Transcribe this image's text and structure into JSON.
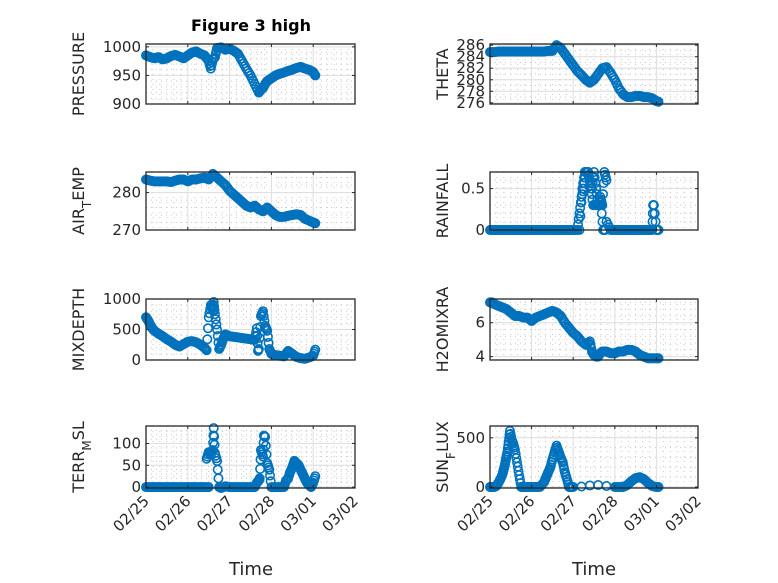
{
  "figure": {
    "title": "Figure 3 high",
    "xlabel": "Time"
  },
  "chart_data": [
    {
      "type": "scatter",
      "ylabel": "PRESSURE",
      "ylabel_sub": null,
      "xlim": [
        0,
        5
      ],
      "ylim": [
        900,
        1005
      ],
      "yticks": [
        900,
        950,
        1000
      ],
      "xticks": [
        "02/25",
        "02/26",
        "02/27",
        "02/28",
        "03/01",
        "03/02"
      ],
      "minor_grid": true,
      "grid": true,
      "show_xticklabels": false,
      "show_title": true,
      "x": [
        0,
        0.1,
        0.2,
        0.3,
        0.4,
        0.5,
        0.6,
        0.7,
        0.8,
        0.9,
        1.0,
        1.1,
        1.2,
        1.3,
        1.4,
        1.5,
        1.55,
        1.6,
        1.65,
        1.7,
        1.8,
        1.9,
        2.0,
        2.1,
        2.2,
        2.3,
        2.4,
        2.5,
        2.6,
        2.7,
        2.75,
        2.8,
        2.85,
        2.9,
        3.0,
        3.1,
        3.2,
        3.3,
        3.4,
        3.5,
        3.6,
        3.7,
        3.8,
        3.9,
        4.0,
        4.05
      ],
      "y": [
        985,
        982,
        980,
        982,
        978,
        980,
        984,
        986,
        983,
        980,
        985,
        990,
        992,
        988,
        985,
        975,
        962,
        978,
        982,
        998,
        999,
        995,
        997,
        993,
        988,
        975,
        962,
        950,
        935,
        920,
        925,
        928,
        935,
        940,
        945,
        950,
        953,
        955,
        958,
        960,
        963,
        965,
        962,
        960,
        956,
        950
      ]
    },
    {
      "type": "scatter",
      "ylabel": "THETA",
      "ylabel_sub": null,
      "xlim": [
        0,
        5
      ],
      "ylim": [
        275.8,
        286.2
      ],
      "yticks": [
        276,
        278,
        280,
        282,
        284,
        286
      ],
      "xticks": [
        "02/25",
        "02/26",
        "02/27",
        "02/28",
        "03/01",
        "03/02"
      ],
      "minor_grid": true,
      "grid": true,
      "show_xticklabels": false,
      "x": [
        0,
        0.1,
        0.2,
        0.3,
        0.4,
        0.5,
        0.6,
        0.7,
        0.8,
        0.9,
        1.0,
        1.1,
        1.2,
        1.3,
        1.4,
        1.5,
        1.6,
        1.7,
        1.8,
        1.9,
        2.0,
        2.1,
        2.2,
        2.3,
        2.4,
        2.5,
        2.6,
        2.7,
        2.8,
        2.9,
        3.0,
        3.1,
        3.2,
        3.3,
        3.4,
        3.5,
        3.6,
        3.7,
        3.8,
        3.9,
        4.0,
        4.05
      ],
      "y": [
        284.8,
        284.8,
        284.9,
        284.9,
        284.9,
        284.9,
        284.9,
        284.9,
        284.9,
        284.9,
        284.9,
        284.9,
        284.9,
        284.9,
        285.0,
        285.0,
        286.0,
        285.5,
        284.5,
        283.5,
        282.5,
        281.5,
        280.8,
        280.0,
        279.5,
        280.0,
        281.0,
        282.0,
        282.2,
        281.2,
        280.0,
        278.5,
        277.5,
        277.0,
        277.0,
        277.2,
        277.2,
        277.0,
        277.0,
        276.8,
        276.3,
        276.2
      ]
    },
    {
      "type": "scatter",
      "ylabel": "AIR",
      "ylabel_sub": "T",
      "ylabel_rest": "EMP",
      "xlim": [
        0,
        5
      ],
      "ylim": [
        270,
        285.5
      ],
      "yticks": [
        270,
        280
      ],
      "xticks": [
        "02/25",
        "02/26",
        "02/27",
        "02/28",
        "03/01",
        "03/02"
      ],
      "minor_grid": true,
      "grid": true,
      "show_xticklabels": false,
      "x": [
        0,
        0.1,
        0.2,
        0.3,
        0.4,
        0.5,
        0.6,
        0.7,
        0.8,
        0.9,
        1.0,
        1.1,
        1.2,
        1.3,
        1.4,
        1.5,
        1.6,
        1.7,
        1.8,
        1.9,
        2.0,
        2.1,
        2.2,
        2.3,
        2.4,
        2.5,
        2.6,
        2.7,
        2.8,
        2.9,
        3.0,
        3.1,
        3.2,
        3.3,
        3.4,
        3.5,
        3.6,
        3.7,
        3.8,
        3.9,
        4.0,
        4.05
      ],
      "y": [
        283.5,
        283.2,
        283.0,
        283.0,
        283.0,
        283.0,
        282.8,
        283.2,
        283.5,
        283.5,
        283.0,
        283.5,
        283.5,
        283.8,
        284.0,
        283.5,
        285.0,
        284.0,
        283.0,
        282.0,
        280.5,
        279.5,
        278.5,
        277.5,
        276.5,
        276.0,
        276.5,
        275.5,
        275.0,
        276.0,
        275.0,
        274.0,
        273.5,
        273.5,
        273.8,
        274.0,
        274.2,
        274.0,
        273.0,
        272.5,
        272.0,
        271.8
      ]
    },
    {
      "type": "scatter",
      "ylabel": "RAINFALL",
      "ylabel_sub": null,
      "xlim": [
        0,
        5
      ],
      "ylim": [
        0,
        0.7
      ],
      "yticks": [
        0,
        0.5
      ],
      "yticklabels": [
        "0",
        "0.5"
      ],
      "xticks": [
        "02/25",
        "02/26",
        "02/27",
        "02/28",
        "03/01",
        "03/02"
      ],
      "minor_grid": true,
      "grid": true,
      "show_xticklabels": false,
      "x": [
        0,
        0.1,
        0.2,
        0.3,
        0.4,
        0.5,
        0.6,
        0.7,
        0.8,
        0.9,
        1.0,
        1.1,
        1.2,
        1.3,
        1.4,
        1.5,
        1.6,
        1.7,
        1.8,
        1.9,
        2.0,
        2.1,
        2.15,
        2.2,
        2.25,
        2.3,
        2.35,
        2.4,
        2.45,
        2.5,
        2.55,
        2.6,
        2.65,
        2.7,
        2.75,
        2.8,
        2.8,
        2.9,
        3.0,
        3.1,
        3.2,
        3.3,
        3.4,
        3.5,
        3.6,
        3.7,
        3.8,
        3.9,
        3.92,
        3.94,
        4.0,
        4.05,
        2.15,
        2.22,
        2.28,
        2.32,
        2.36,
        2.43,
        2.48,
        2.5,
        2.55,
        2.62,
        2.67,
        2.72,
        2.77
      ],
      "y": [
        0,
        0,
        0,
        0,
        0,
        0,
        0,
        0,
        0,
        0,
        0,
        0,
        0,
        0,
        0,
        0,
        0,
        0,
        0,
        0,
        0,
        0,
        0.2,
        0.4,
        0.5,
        0.7,
        0.7,
        0.6,
        0.5,
        0.7,
        0.5,
        0.3,
        0.4,
        0.3,
        0.7,
        0.6,
        0.1,
        0,
        0,
        0,
        0,
        0,
        0,
        0,
        0,
        0,
        0,
        0,
        0.3,
        0.3,
        0,
        0,
        0,
        0.5,
        0.7,
        0.7,
        0.7,
        0.5,
        0.3,
        0.3,
        0.3,
        0.3,
        0.3,
        0,
        0
      ]
    },
    {
      "type": "scatter",
      "ylabel": "MIXDEPTH",
      "ylabel_sub": null,
      "xlim": [
        0,
        5
      ],
      "ylim": [
        0,
        1000
      ],
      "yticks": [
        0,
        500,
        1000
      ],
      "xticks": [
        "02/25",
        "02/26",
        "02/27",
        "02/28",
        "03/01",
        "03/02"
      ],
      "minor_grid": true,
      "grid": true,
      "show_xticklabels": false,
      "x": [
        0,
        0.05,
        0.1,
        0.15,
        0.2,
        0.3,
        0.4,
        0.5,
        0.6,
        0.7,
        0.8,
        0.9,
        1.0,
        1.1,
        1.2,
        1.3,
        1.4,
        1.45,
        1.5,
        1.55,
        1.6,
        1.62,
        1.65,
        1.7,
        1.75,
        1.8,
        1.85,
        1.9,
        2.0,
        2.1,
        2.2,
        2.3,
        2.4,
        2.5,
        2.6,
        2.65,
        2.68,
        2.7,
        2.75,
        2.8,
        2.85,
        2.9,
        2.95,
        3.0,
        3.1,
        3.2,
        3.3,
        3.4,
        3.5,
        3.6,
        3.7,
        3.8,
        3.9,
        4.0,
        4.05
      ],
      "y": [
        700,
        650,
        580,
        520,
        480,
        430,
        390,
        340,
        300,
        250,
        220,
        260,
        300,
        310,
        290,
        250,
        200,
        160,
        700,
        900,
        820,
        950,
        750,
        500,
        180,
        250,
        350,
        420,
        390,
        380,
        370,
        360,
        350,
        340,
        330,
        520,
        150,
        180,
        720,
        800,
        560,
        480,
        180,
        100,
        80,
        70,
        60,
        150,
        100,
        50,
        30,
        20,
        40,
        70,
        170
      ]
    },
    {
      "type": "scatter",
      "ylabel": "H2OMIXRA",
      "ylabel_sub": null,
      "xlim": [
        0,
        5
      ],
      "ylim": [
        3.8,
        7.4
      ],
      "yticks": [
        4,
        6
      ],
      "xticks": [
        "02/25",
        "02/26",
        "02/27",
        "02/28",
        "03/01",
        "03/02"
      ],
      "minor_grid": true,
      "grid": true,
      "show_xticklabels": false,
      "x": [
        0,
        0.05,
        0.1,
        0.2,
        0.3,
        0.4,
        0.5,
        0.6,
        0.7,
        0.8,
        0.9,
        1.0,
        1.1,
        1.2,
        1.3,
        1.4,
        1.5,
        1.6,
        1.7,
        1.8,
        1.9,
        2.0,
        2.1,
        2.2,
        2.3,
        2.4,
        2.45,
        2.5,
        2.55,
        2.6,
        2.65,
        2.7,
        2.8,
        2.9,
        3.0,
        3.1,
        3.2,
        3.3,
        3.4,
        3.5,
        3.6,
        3.7,
        3.8,
        3.9,
        4.0,
        4.05
      ],
      "y": [
        7.2,
        7.2,
        7.1,
        7.0,
        6.9,
        6.8,
        6.6,
        6.4,
        6.4,
        6.3,
        6.3,
        6.1,
        6.3,
        6.4,
        6.5,
        6.6,
        6.7,
        6.6,
        6.4,
        6.0,
        5.7,
        5.4,
        5.2,
        4.9,
        4.7,
        4.9,
        4.3,
        4.1,
        4.0,
        4.0,
        4.2,
        4.3,
        4.3,
        4.2,
        4.2,
        4.3,
        4.3,
        4.4,
        4.4,
        4.3,
        4.1,
        4.0,
        3.9,
        3.9,
        3.9,
        3.9
      ]
    },
    {
      "type": "scatter",
      "ylabel": "TERR",
      "ylabel_sub": "M",
      "ylabel_rest": "SL",
      "xlim": [
        0,
        5
      ],
      "ylim": [
        -2,
        140
      ],
      "yticks": [
        0,
        50,
        100
      ],
      "xticks": [
        "02/25",
        "02/26",
        "02/27",
        "02/28",
        "03/01",
        "03/02"
      ],
      "minor_grid": true,
      "grid": true,
      "show_xticklabels": true,
      "x": [
        0,
        0.1,
        0.2,
        0.3,
        0.4,
        0.5,
        0.6,
        0.7,
        0.8,
        0.9,
        1.0,
        1.1,
        1.2,
        1.3,
        1.4,
        1.5,
        1.45,
        1.5,
        1.55,
        1.6,
        1.62,
        1.65,
        1.7,
        1.75,
        1.8,
        1.9,
        2.0,
        2.1,
        2.2,
        2.3,
        2.4,
        2.5,
        2.6,
        2.65,
        2.7,
        2.72,
        2.75,
        2.8,
        2.82,
        2.85,
        2.9,
        2.95,
        3.0,
        3.1,
        3.2,
        3.3,
        3.35,
        3.4,
        3.45,
        3.5,
        3.55,
        3.6,
        3.65,
        3.7,
        3.75,
        3.8,
        3.85,
        3.9,
        3.95,
        4.0,
        4.05
      ],
      "y": [
        0,
        0,
        0,
        0,
        0,
        0,
        0,
        0,
        0,
        0,
        0,
        0,
        0,
        0,
        0,
        0,
        65,
        80,
        75,
        85,
        135,
        78,
        60,
        0,
        -2,
        2,
        0,
        0,
        0,
        0,
        0,
        0,
        0,
        10,
        15,
        20,
        85,
        70,
        118,
        115,
        55,
        40,
        0,
        0,
        0,
        0,
        15,
        20,
        35,
        45,
        60,
        55,
        50,
        40,
        30,
        20,
        10,
        5,
        0,
        10,
        25
      ]
    },
    {
      "type": "scatter",
      "ylabel": "SUN",
      "ylabel_sub": "F",
      "ylabel_rest": "LUX",
      "xlim": [
        0,
        5
      ],
      "ylim": [
        -10,
        620
      ],
      "yticks": [
        0,
        500
      ],
      "xticks": [
        "02/25",
        "02/26",
        "02/27",
        "02/28",
        "03/01",
        "03/02"
      ],
      "minor_grid": true,
      "grid": true,
      "show_xticklabels": true,
      "x": [
        0,
        0.05,
        0.1,
        0.15,
        0.2,
        0.25,
        0.3,
        0.33,
        0.36,
        0.39,
        0.42,
        0.45,
        0.48,
        0.52,
        0.56,
        0.6,
        0.65,
        0.7,
        0.75,
        0.8,
        0.9,
        1.0,
        1.1,
        1.2,
        1.3,
        1.35,
        1.4,
        1.45,
        1.5,
        1.55,
        1.6,
        1.65,
        1.7,
        1.75,
        1.8,
        1.85,
        1.9,
        1.95,
        2.0,
        2.2,
        2.4,
        2.6,
        2.8,
        3.0,
        3.1,
        3.2,
        3.3,
        3.4,
        3.5,
        3.6,
        3.7,
        3.8,
        3.9,
        4.0,
        4.05
      ],
      "y": [
        0,
        0,
        0,
        10,
        40,
        80,
        130,
        180,
        230,
        300,
        360,
        460,
        570,
        480,
        440,
        380,
        250,
        120,
        0,
        0,
        0,
        0,
        0,
        0,
        50,
        100,
        150,
        200,
        280,
        350,
        420,
        360,
        300,
        250,
        150,
        80,
        0,
        0,
        0,
        5,
        15,
        20,
        10,
        0,
        0,
        0,
        20,
        60,
        90,
        100,
        80,
        40,
        10,
        0,
        0
      ]
    }
  ]
}
